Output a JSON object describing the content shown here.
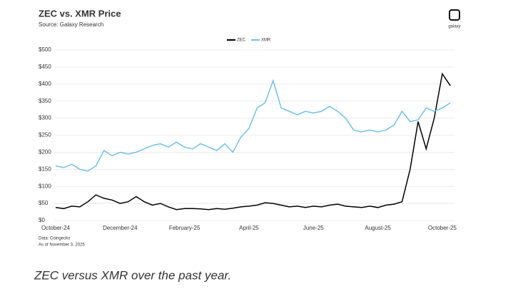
{
  "chart_data": {
    "type": "line",
    "title": "ZEC vs. XMR Price",
    "subtitle": "Source: Galaxy Research",
    "logo": "galaxy",
    "notes": [
      "Data: Coingecko",
      "As of November 3, 2025"
    ],
    "categories": [
      "October-24",
      null,
      null,
      null,
      null,
      null,
      null,
      null,
      "December-24",
      null,
      null,
      null,
      null,
      null,
      null,
      null,
      "February-25",
      null,
      null,
      null,
      null,
      null,
      null,
      null,
      "April-25",
      null,
      null,
      null,
      null,
      null,
      null,
      null,
      "June-25",
      null,
      null,
      null,
      null,
      null,
      null,
      null,
      "August-25",
      null,
      null,
      null,
      null,
      null,
      null,
      null,
      "October-25",
      null
    ],
    "series": [
      {
        "name": "ZEC",
        "color": "#000000",
        "values": [
          38,
          35,
          42,
          40,
          55,
          75,
          65,
          60,
          50,
          55,
          70,
          55,
          45,
          50,
          40,
          32,
          35,
          35,
          34,
          32,
          35,
          33,
          36,
          40,
          42,
          45,
          52,
          50,
          45,
          40,
          42,
          38,
          42,
          40,
          45,
          48,
          42,
          40,
          38,
          42,
          38,
          45,
          48,
          55,
          150,
          290,
          210,
          300,
          430,
          395
        ]
      },
      {
        "name": "XMR",
        "color": "#6ec1ea",
        "values": [
          160,
          155,
          165,
          150,
          145,
          160,
          205,
          190,
          200,
          195,
          200,
          210,
          220,
          225,
          215,
          230,
          215,
          210,
          225,
          215,
          205,
          225,
          200,
          245,
          270,
          330,
          345,
          410,
          330,
          320,
          310,
          320,
          315,
          320,
          335,
          320,
          300,
          265,
          260,
          265,
          260,
          265,
          280,
          320,
          290,
          295,
          330,
          320,
          330,
          345
        ]
      }
    ],
    "ylim": [
      0,
      500
    ],
    "yticks": [
      {
        "value": 0,
        "label": "$0"
      },
      {
        "value": 50,
        "label": "$50"
      },
      {
        "value": 100,
        "label": "$100"
      },
      {
        "value": 150,
        "label": "$150"
      },
      {
        "value": 200,
        "label": "$200"
      },
      {
        "value": 250,
        "label": "$250"
      },
      {
        "value": 300,
        "label": "$300"
      },
      {
        "value": 350,
        "label": "$350"
      },
      {
        "value": 400,
        "label": "$400"
      },
      {
        "value": 450,
        "label": "$450"
      },
      {
        "value": 500,
        "label": "$500"
      }
    ],
    "grid": true
  },
  "caption": "ZEC versus XMR over the past year."
}
